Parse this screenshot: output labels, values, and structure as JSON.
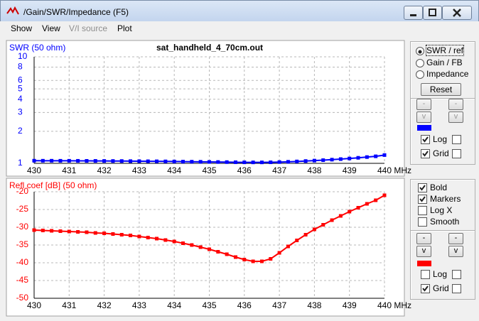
{
  "window": {
    "title": "/Gain/SWR/Impedance (F5)"
  },
  "menu": [
    {
      "label": "Show",
      "enabled": true
    },
    {
      "label": "View",
      "enabled": true
    },
    {
      "label": "V/I source",
      "enabled": false
    },
    {
      "label": "Plot",
      "enabled": true
    }
  ],
  "chart_data": [
    {
      "type": "line",
      "title": "sat_handheld_4_70cm.out",
      "y_label": "SWR (50 ohm)",
      "x": [
        430,
        430.25,
        430.5,
        430.75,
        431,
        431.25,
        431.5,
        431.75,
        432,
        432.25,
        432.5,
        432.75,
        433,
        433.25,
        433.5,
        433.75,
        434,
        434.25,
        434.5,
        434.75,
        435,
        435.25,
        435.5,
        435.75,
        436,
        436.25,
        436.5,
        436.75,
        437,
        437.25,
        437.5,
        437.75,
        438,
        438.25,
        438.5,
        438.75,
        439,
        439.25,
        439.5,
        439.75,
        440
      ],
      "series": [
        {
          "color": "#0000ff",
          "values": [
            1.059,
            1.058,
            1.058,
            1.057,
            1.057,
            1.056,
            1.055,
            1.054,
            1.053,
            1.052,
            1.051,
            1.049,
            1.048,
            1.046,
            1.045,
            1.043,
            1.041,
            1.038,
            1.036,
            1.034,
            1.031,
            1.029,
            1.027,
            1.024,
            1.022,
            1.021,
            1.021,
            1.023,
            1.028,
            1.034,
            1.042,
            1.051,
            1.061,
            1.071,
            1.083,
            1.096,
            1.111,
            1.127,
            1.145,
            1.164,
            1.196
          ]
        }
      ],
      "xlim": [
        430,
        440
      ],
      "xticks": [
        430,
        431,
        432,
        433,
        434,
        435,
        436,
        437,
        438,
        439,
        {
          "value": 440,
          "label": "440 MHz"
        }
      ],
      "ylim": [
        1,
        10
      ],
      "yticks": [
        1,
        2,
        3,
        4,
        5,
        6,
        8,
        10
      ],
      "ylog": true,
      "grid": true,
      "markers": true
    },
    {
      "type": "line",
      "y_label": "Refl coef [dB] (50 ohm)",
      "x": [
        430,
        430.25,
        430.5,
        430.75,
        431,
        431.25,
        431.5,
        431.75,
        432,
        432.25,
        432.5,
        432.75,
        433,
        433.25,
        433.5,
        433.75,
        434,
        434.25,
        434.5,
        434.75,
        435,
        435.25,
        435.5,
        435.75,
        436,
        436.25,
        436.5,
        436.75,
        437,
        437.25,
        437.5,
        437.75,
        438,
        438.25,
        438.5,
        438.75,
        439,
        439.25,
        439.5,
        439.75,
        440
      ],
      "series": [
        {
          "color": "#ff0000",
          "values": [
            -30.8,
            -30.9,
            -31.0,
            -31.1,
            -31.2,
            -31.3,
            -31.4,
            -31.6,
            -31.7,
            -31.9,
            -32.1,
            -32.3,
            -32.6,
            -32.9,
            -33.2,
            -33.6,
            -34.0,
            -34.5,
            -35.0,
            -35.6,
            -36.2,
            -36.9,
            -37.6,
            -38.4,
            -39.1,
            -39.6,
            -39.6,
            -38.9,
            -37.2,
            -35.4,
            -33.7,
            -32.1,
            -30.6,
            -29.3,
            -28.0,
            -26.8,
            -25.6,
            -24.5,
            -23.4,
            -22.4,
            -21.0
          ]
        }
      ],
      "xlim": [
        430,
        440
      ],
      "xticks": [
        430,
        431,
        432,
        433,
        434,
        435,
        436,
        437,
        438,
        439,
        {
          "value": 440,
          "label": "440 MHz"
        }
      ],
      "ylim": [
        -50,
        -20
      ],
      "yticks": [
        -20,
        -25,
        -30,
        -35,
        -40,
        -45,
        -50
      ],
      "grid": true,
      "markers": true
    }
  ],
  "controls": {
    "plot_mode": {
      "options": [
        "SWR / ref",
        "Gain / FB",
        "Impedance"
      ],
      "selected": 0
    },
    "reset": "Reset",
    "upper": {
      "buttons": [
        "-",
        "-",
        "v",
        "v"
      ],
      "rows": [
        {
          "label": "Log",
          "checked": [
            true,
            false
          ]
        },
        {
          "label": "Grid",
          "checked": [
            true,
            false
          ]
        }
      ]
    },
    "lower": {
      "options": [
        {
          "label": "Bold",
          "checked": true
        },
        {
          "label": "Markers",
          "checked": true
        },
        {
          "label": "Log X",
          "checked": false
        },
        {
          "label": "Smooth",
          "checked": false
        }
      ],
      "buttons": [
        "-",
        "-",
        "v",
        "v"
      ],
      "rows": [
        {
          "label": "Log",
          "checked": [
            false,
            false
          ]
        },
        {
          "label": "Grid",
          "checked": [
            true,
            false
          ]
        }
      ]
    }
  }
}
